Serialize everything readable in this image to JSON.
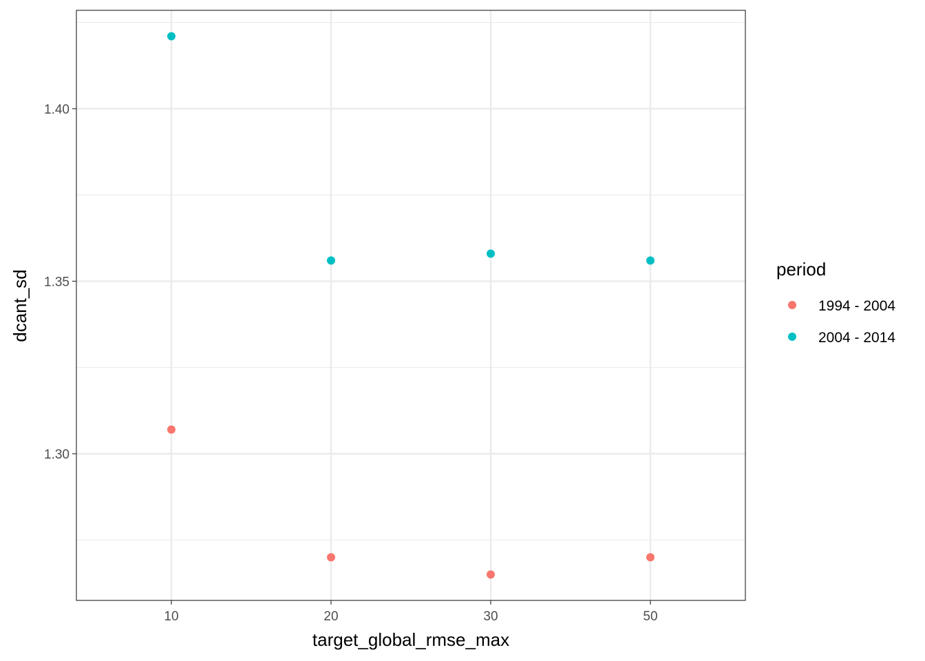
{
  "chart_data": {
    "type": "scatter",
    "xlabel": "target_global_rmse_max",
    "ylabel": "dcant_sd",
    "x_categories": [
      "10",
      "20",
      "30",
      "50"
    ],
    "y_ticks": [
      "1.30",
      "1.35",
      "1.40"
    ],
    "ylim": [
      1.2575,
      1.4285
    ],
    "grid": true,
    "legend": {
      "title": "period",
      "placement": "right"
    },
    "series": [
      {
        "name": "1994 - 2004",
        "color": "#F8766D",
        "points": [
          {
            "x": "10",
            "y": 1.307
          },
          {
            "x": "20",
            "y": 1.27
          },
          {
            "x": "30",
            "y": 1.265
          },
          {
            "x": "50",
            "y": 1.27
          }
        ]
      },
      {
        "name": "2004 - 2014",
        "color": "#00BFC4",
        "points": [
          {
            "x": "10",
            "y": 1.421
          },
          {
            "x": "20",
            "y": 1.356
          },
          {
            "x": "30",
            "y": 1.358
          },
          {
            "x": "50",
            "y": 1.356
          }
        ]
      }
    ]
  }
}
